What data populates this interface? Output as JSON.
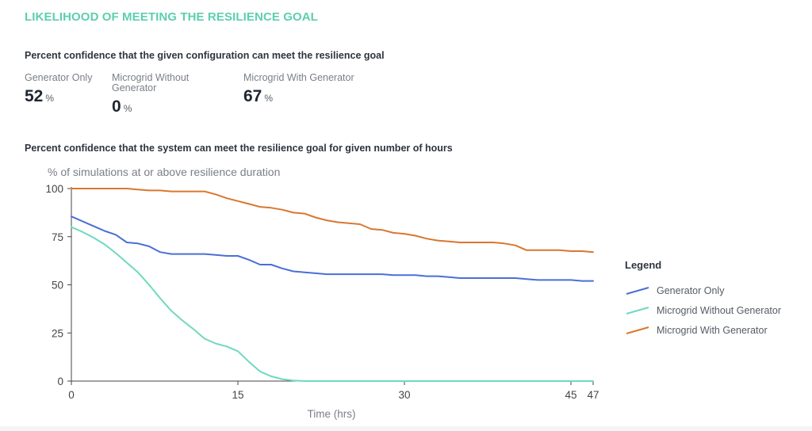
{
  "section_title": "LIKELIHOOD OF MEETING THE RESILIENCE GOAL",
  "subhead_config": "Percent confidence that the given configuration can meet the resilience goal",
  "stats": [
    {
      "label": "Generator Only",
      "value": "52",
      "unit": "%"
    },
    {
      "label": "Microgrid Without Generator",
      "value": "0",
      "unit": "%"
    },
    {
      "label": "Microgrid With Generator",
      "value": "67",
      "unit": "%"
    }
  ],
  "subhead_hours": "Percent confidence that the system can meet the resilience goal for given number of hours",
  "chart_data": {
    "type": "line",
    "ylabel": "% of simulations at or above resilience duration",
    "xlabel": "Time (hrs)",
    "xlim": [
      0,
      47
    ],
    "ylim": [
      0,
      100
    ],
    "xticks": [
      0,
      15,
      30,
      45,
      47
    ],
    "yticks": [
      0,
      25,
      50,
      75,
      100
    ],
    "grid": false,
    "legend_title": "Legend",
    "legend_position": "right",
    "series": [
      {
        "name": "Generator Only",
        "color": "#4a6fd6",
        "x": [
          0,
          1,
          2,
          3,
          4,
          5,
          6,
          7,
          8,
          9,
          10,
          11,
          12,
          13,
          14,
          15,
          16,
          17,
          18,
          19,
          20,
          21,
          22,
          23,
          24,
          25,
          26,
          27,
          28,
          29,
          30,
          31,
          32,
          33,
          34,
          35,
          36,
          37,
          38,
          39,
          40,
          41,
          42,
          43,
          44,
          45,
          46,
          47
        ],
        "values": [
          85.5,
          83,
          80.5,
          78,
          76,
          72,
          71.5,
          70,
          67,
          66,
          66,
          66,
          66,
          65.5,
          65,
          65,
          63,
          60.5,
          60.5,
          58.5,
          57,
          56.5,
          56,
          55.5,
          55.5,
          55.5,
          55.5,
          55.5,
          55.5,
          55,
          55,
          55,
          54.5,
          54.5,
          54,
          53.5,
          53.5,
          53.5,
          53.5,
          53.5,
          53.5,
          53,
          52.5,
          52.5,
          52.5,
          52.5,
          52,
          52
        ]
      },
      {
        "name": "Microgrid Without Generator",
        "color": "#6fd9bf",
        "x": [
          0,
          1,
          2,
          3,
          4,
          5,
          6,
          7,
          8,
          9,
          10,
          11,
          12,
          13,
          14,
          15,
          16,
          17,
          18,
          19,
          20,
          21,
          22,
          25,
          30,
          35,
          40,
          45,
          47
        ],
        "values": [
          80,
          77.5,
          74.5,
          71,
          66.5,
          61.5,
          56.5,
          50,
          43,
          36.5,
          31.5,
          27,
          22,
          19.5,
          18,
          15.5,
          10,
          5,
          2.5,
          1,
          0.3,
          0,
          0,
          0,
          0,
          0,
          0,
          0,
          0
        ]
      },
      {
        "name": "Microgrid With Generator",
        "color": "#d9772f",
        "x": [
          0,
          1,
          2,
          3,
          4,
          5,
          6,
          7,
          8,
          9,
          10,
          11,
          12,
          13,
          14,
          15,
          16,
          17,
          18,
          19,
          20,
          21,
          22,
          23,
          24,
          25,
          26,
          27,
          28,
          29,
          30,
          31,
          32,
          33,
          34,
          35,
          36,
          37,
          38,
          39,
          40,
          41,
          42,
          43,
          44,
          45,
          46,
          47
        ],
        "values": [
          100,
          100,
          100,
          100,
          100,
          100,
          99.5,
          99,
          99,
          98.5,
          98.5,
          98.5,
          98.5,
          97,
          95,
          93.5,
          92,
          90.5,
          90,
          89,
          87.5,
          87,
          85,
          83.5,
          82.5,
          82,
          81.5,
          79,
          78.5,
          77,
          76.5,
          75.5,
          74,
          73,
          72.5,
          72,
          72,
          72,
          72,
          71.5,
          70.5,
          68,
          68,
          68,
          68,
          67.5,
          67.5,
          67
        ]
      }
    ]
  }
}
